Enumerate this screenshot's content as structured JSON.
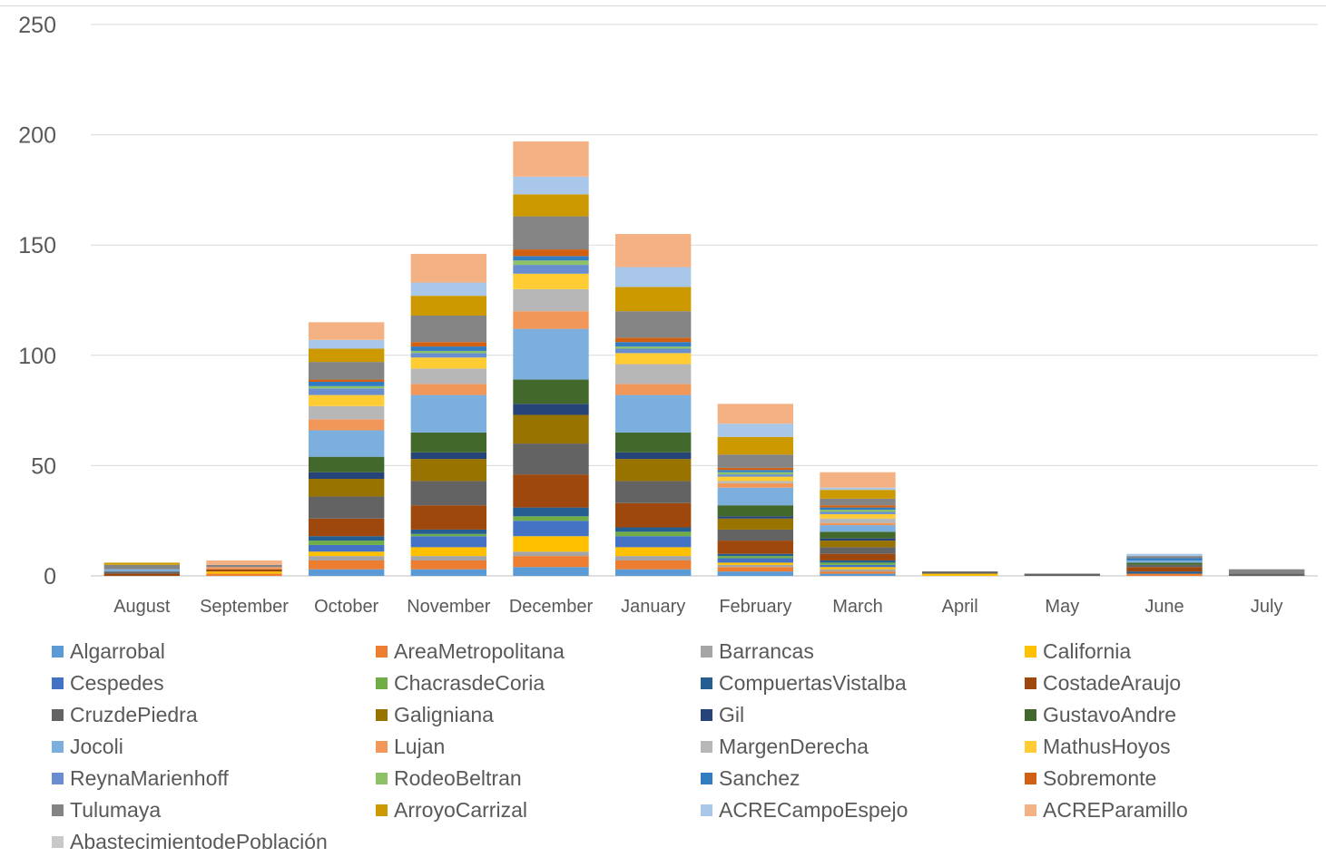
{
  "chart_data": {
    "type": "bar",
    "stacked": true,
    "title": "",
    "xlabel": "",
    "ylabel": "",
    "ylim": [
      0,
      250
    ],
    "yticks": [
      0,
      50,
      100,
      150,
      200,
      250
    ],
    "grid": true,
    "legend_position": "bottom",
    "categories": [
      "August",
      "September",
      "October",
      "November",
      "December",
      "January",
      "February",
      "March",
      "April",
      "May",
      "June",
      "July"
    ],
    "series": [
      {
        "name": "Algarrobal",
        "color": "#5b9bd5",
        "values": [
          0,
          0,
          3,
          3,
          4,
          3,
          2,
          1,
          0,
          0,
          0,
          0
        ]
      },
      {
        "name": "AreaMetropolitana",
        "color": "#ed7d31",
        "values": [
          0,
          1,
          4,
          4,
          5,
          4,
          2,
          1,
          0,
          0,
          1,
          0
        ]
      },
      {
        "name": "Barrancas",
        "color": "#a5a5a5",
        "values": [
          0,
          0,
          2,
          2,
          2,
          2,
          1,
          1,
          0,
          0,
          0,
          0
        ]
      },
      {
        "name": "California",
        "color": "#ffc000",
        "values": [
          0,
          1,
          2,
          4,
          7,
          4,
          1,
          1,
          1,
          0,
          0,
          0
        ]
      },
      {
        "name": "Cespedes",
        "color": "#4472c4",
        "values": [
          0,
          0,
          3,
          5,
          7,
          5,
          2,
          1,
          0,
          0,
          0,
          0
        ]
      },
      {
        "name": "ChacrasdeCoria",
        "color": "#70ad47",
        "values": [
          0,
          0,
          2,
          1,
          2,
          2,
          1,
          1,
          0,
          0,
          0,
          0
        ]
      },
      {
        "name": "CompuertasVistalba",
        "color": "#255e91",
        "values": [
          0,
          0,
          2,
          2,
          4,
          2,
          1,
          1,
          0,
          0,
          1,
          0
        ]
      },
      {
        "name": "CostadeAraujo",
        "color": "#9e480e",
        "values": [
          1,
          1,
          8,
          11,
          15,
          11,
          6,
          3,
          0,
          0,
          2,
          0
        ]
      },
      {
        "name": "CruzdePiedra",
        "color": "#636363",
        "values": [
          1,
          0,
          10,
          11,
          14,
          10,
          5,
          3,
          1,
          1,
          1,
          1
        ]
      },
      {
        "name": "Galigniana",
        "color": "#997300",
        "values": [
          0,
          0,
          8,
          10,
          13,
          10,
          5,
          3,
          0,
          0,
          0,
          0
        ]
      },
      {
        "name": "Gil",
        "color": "#264478",
        "values": [
          0,
          0,
          3,
          3,
          5,
          3,
          1,
          1,
          0,
          0,
          0,
          0
        ]
      },
      {
        "name": "GustavoAndre",
        "color": "#43682b",
        "values": [
          0,
          0,
          7,
          9,
          11,
          9,
          5,
          3,
          0,
          0,
          1,
          0
        ]
      },
      {
        "name": "Jocoli",
        "color": "#7cafdd",
        "values": [
          1,
          0,
          12,
          17,
          23,
          17,
          8,
          3,
          0,
          0,
          1,
          0
        ]
      },
      {
        "name": "Lujan",
        "color": "#f1975a",
        "values": [
          0,
          1,
          5,
          5,
          8,
          5,
          2,
          1,
          0,
          0,
          0,
          0
        ]
      },
      {
        "name": "MargenDerecha",
        "color": "#b7b7b7",
        "values": [
          0,
          0,
          6,
          7,
          10,
          9,
          1,
          2,
          0,
          0,
          0,
          0
        ]
      },
      {
        "name": "MathusHoyos",
        "color": "#ffcd33",
        "values": [
          0,
          0,
          5,
          5,
          7,
          5,
          2,
          2,
          0,
          0,
          0,
          0
        ]
      },
      {
        "name": "ReynaMarienhoff",
        "color": "#698ed0",
        "values": [
          0,
          0,
          3,
          2,
          4,
          2,
          1,
          1,
          0,
          0,
          0,
          0
        ]
      },
      {
        "name": "RodeoBeltran",
        "color": "#8cc168",
        "values": [
          0,
          0,
          1,
          1,
          2,
          1,
          1,
          1,
          0,
          0,
          0,
          0
        ]
      },
      {
        "name": "Sanchez",
        "color": "#327dc2",
        "values": [
          0,
          0,
          2,
          2,
          2,
          2,
          1,
          1,
          0,
          0,
          1,
          0
        ]
      },
      {
        "name": "Sobremonte",
        "color": "#d26012",
        "values": [
          0,
          0,
          1,
          2,
          3,
          2,
          1,
          1,
          0,
          0,
          0,
          0
        ]
      },
      {
        "name": "Tulumaya",
        "color": "#848484",
        "values": [
          2,
          1,
          8,
          12,
          15,
          12,
          6,
          3,
          0,
          0,
          1,
          2
        ]
      },
      {
        "name": "ArroyoCarrizal",
        "color": "#cc9a00",
        "values": [
          1,
          0,
          6,
          9,
          10,
          11,
          8,
          4,
          0,
          0,
          0,
          0
        ]
      },
      {
        "name": "ACRECampoEspejo",
        "color": "#a9c8e9",
        "values": [
          0,
          0,
          4,
          6,
          8,
          9,
          6,
          1,
          0,
          0,
          1,
          0
        ]
      },
      {
        "name": "ACREParamillo",
        "color": "#f4b183",
        "values": [
          0,
          2,
          8,
          13,
          16,
          15,
          9,
          7,
          0,
          0,
          0,
          0
        ]
      },
      {
        "name": "AbastecimientodePoblación",
        "color": "#c9c9c9",
        "values": [
          0,
          0,
          0,
          0,
          0,
          0,
          0,
          0,
          0,
          0,
          0,
          0
        ]
      }
    ]
  }
}
